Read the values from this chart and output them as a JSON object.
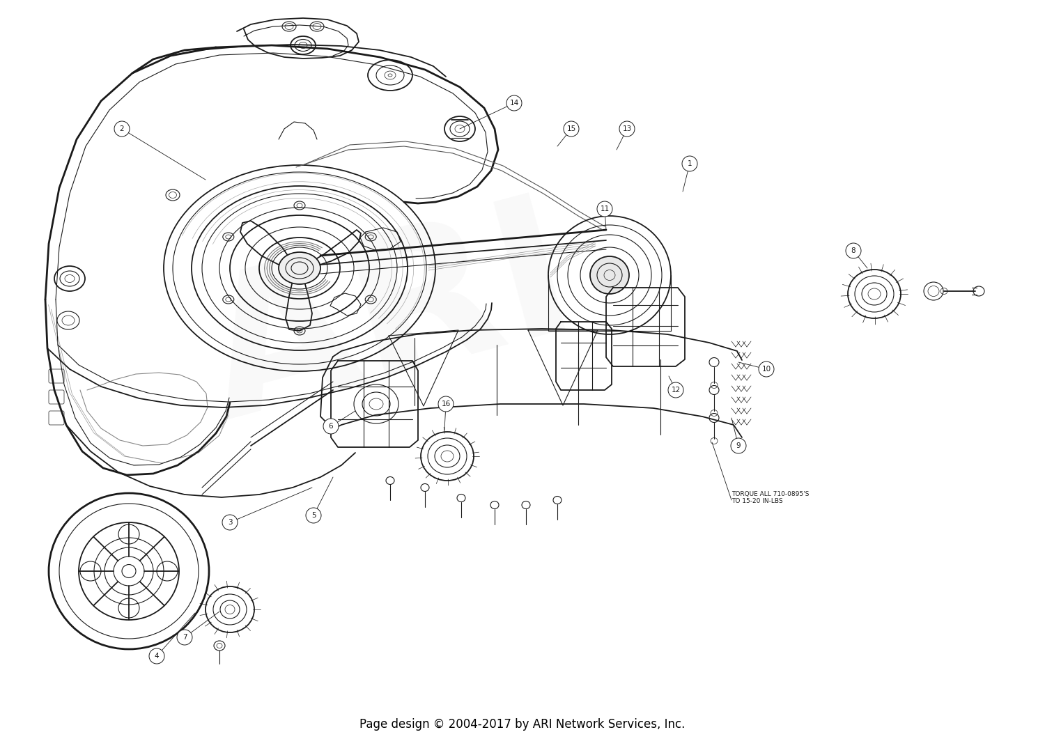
{
  "background_color": "#ffffff",
  "diagram_color": "#1a1a1a",
  "footer_text": "Page design © 2004-2017 by ARI Network Services, Inc.",
  "footer_fontsize": 12,
  "footer_color": "#000000",
  "watermark_text": "ARI",
  "watermark_alpha": 0.12,
  "watermark_fontsize": 200,
  "torque_text": "TORQUE ALL 710-0895'S\nTO 15-20 IN-LBS",
  "torque_fontsize": 6.5,
  "fig_width": 15.0,
  "fig_height": 10.61,
  "dpi": 100
}
